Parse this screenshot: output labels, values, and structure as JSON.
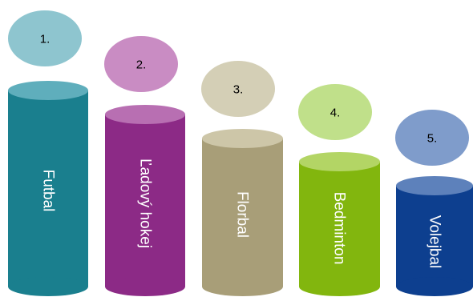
{
  "items": [
    {
      "rank": "1.",
      "label": "Futbal",
      "body": "#1a7f8e",
      "top": "#5faebc",
      "bubble": "#8ec5cf"
    },
    {
      "rank": "2.",
      "label": "Ľadový hokej",
      "body": "#8c2a86",
      "top": "#b86fb2",
      "bubble": "#c98cc3"
    },
    {
      "rank": "3.",
      "label": "Florbal",
      "body": "#a89e78",
      "top": "#cdc6a8",
      "bubble": "#d4cfb6"
    },
    {
      "rank": "4.",
      "label": "Bedminton",
      "body": "#82b60e",
      "top": "#b3d565",
      "bubble": "#c0e08a"
    },
    {
      "rank": "5.",
      "label": "Volejbal",
      "body": "#0d3f8f",
      "top": "#5d81bb",
      "bubble": "#7f9ccb"
    }
  ]
}
